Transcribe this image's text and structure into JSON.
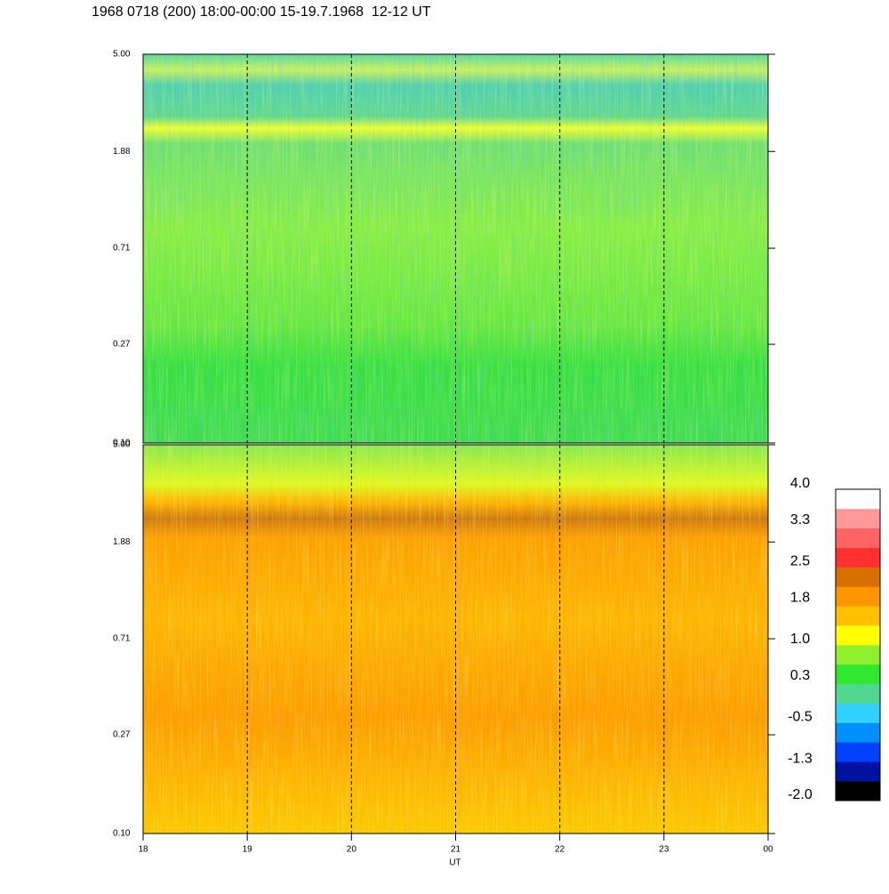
{
  "chart_data": {
    "type": "spectrogram",
    "title": "1968 0718 (200) 18:00-00:00 15-19.7.1968  12-12 UT",
    "xlabel": "UT",
    "xlim": [
      18,
      24
    ],
    "xticks": [
      18,
      19,
      20,
      21,
      22,
      23,
      {
        "value": 24,
        "label": "00"
      }
    ],
    "grid": true,
    "panels": [
      {
        "log_y": true,
        "ylim": [
          0.1,
          5
        ],
        "yticks": [
          {
            "value": 0.1,
            "label": "0.10"
          },
          0.27,
          0.71,
          1.88,
          {
            "value": 5,
            "label": "5.00"
          }
        ]
      },
      {
        "log_y": true,
        "ylim": [
          0.1,
          5
        ],
        "yticks": [
          {
            "value": 0.1,
            "label": "0.10"
          },
          0.27,
          0.71,
          1.88,
          {
            "value": 5,
            "label": "5.00"
          }
        ]
      }
    ],
    "colorbar": {
      "clim": [
        -2,
        4
      ],
      "colors": [
        "#000000",
        "#0012a0",
        "#0040ff",
        "#0090ff",
        "#30d0ff",
        "#50d890",
        "#30e830",
        "#90f030",
        "#ffff00",
        "#ffc000",
        "#ff9600",
        "#d87000",
        "#ff3030",
        "#ff6464",
        "#ff9898",
        "#ffffff"
      ],
      "ticks": [
        {
          "value": 4,
          "label": "4.0"
        },
        3.3,
        2.5,
        1.8,
        {
          "value": 1,
          "label": "1.0"
        },
        0.3,
        -0.5,
        -1.3,
        {
          "value": -2,
          "label": "-2.0"
        }
      ]
    }
  }
}
